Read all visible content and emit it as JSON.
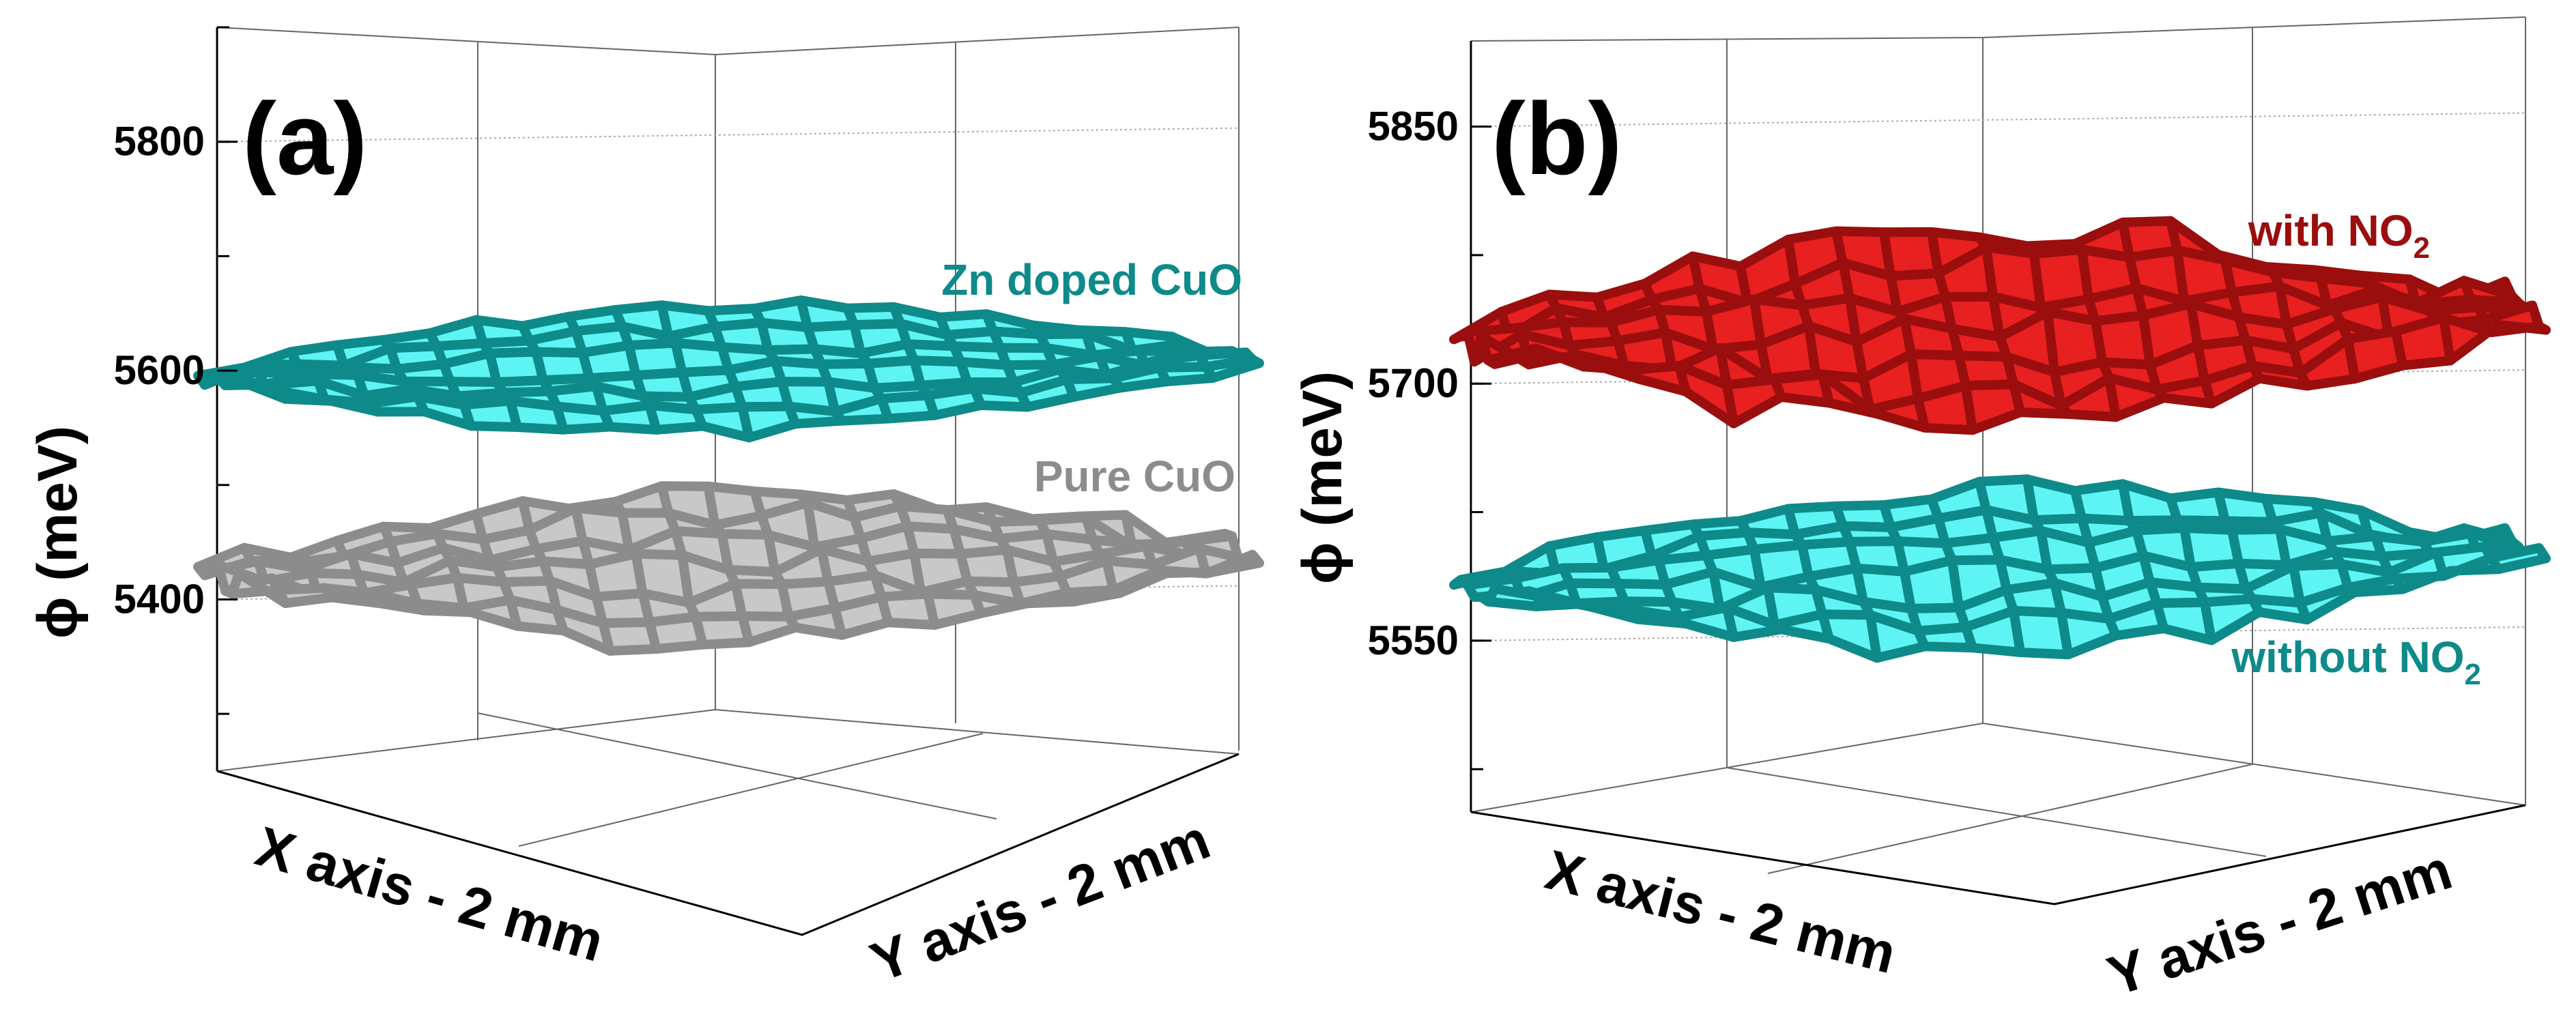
{
  "chart_data": [
    {
      "type": "surface",
      "panel_label": "(a)",
      "zlabel": "ϕ (meV)",
      "xlabel": "X axis - 2 mm",
      "ylabel": "Y axis - 2 mm",
      "z_ticks": [
        5400,
        5600,
        5800
      ],
      "zlim": [
        5250,
        5900
      ],
      "series": [
        {
          "name": "Zn doped CuO",
          "mean_value": 5590,
          "variation": 40,
          "color": "#0e8a8a",
          "face_color": "#5ff4f4"
        },
        {
          "name": "Pure CuO",
          "mean_value": 5420,
          "variation": 70,
          "color": "#8c8c8c",
          "face_color": "#c8c8c8"
        }
      ]
    },
    {
      "type": "surface",
      "panel_label": "(b)",
      "zlabel": "ϕ (meV)",
      "xlabel": "X axis - 2 mm",
      "ylabel": "Y axis - 2 mm",
      "z_ticks": [
        5550,
        5700,
        5850
      ],
      "zlim": [
        5450,
        5900
      ],
      "series": [
        {
          "name": "with NO",
          "subscript": "2",
          "mean_value": 5720,
          "variation": 90,
          "color": "#9a0e0e",
          "face_color": "#e82020"
        },
        {
          "name": "without NO",
          "subscript": "2",
          "mean_value": 5580,
          "variation": 60,
          "color": "#0e8a8a",
          "face_color": "#5ff4f4"
        }
      ]
    }
  ]
}
